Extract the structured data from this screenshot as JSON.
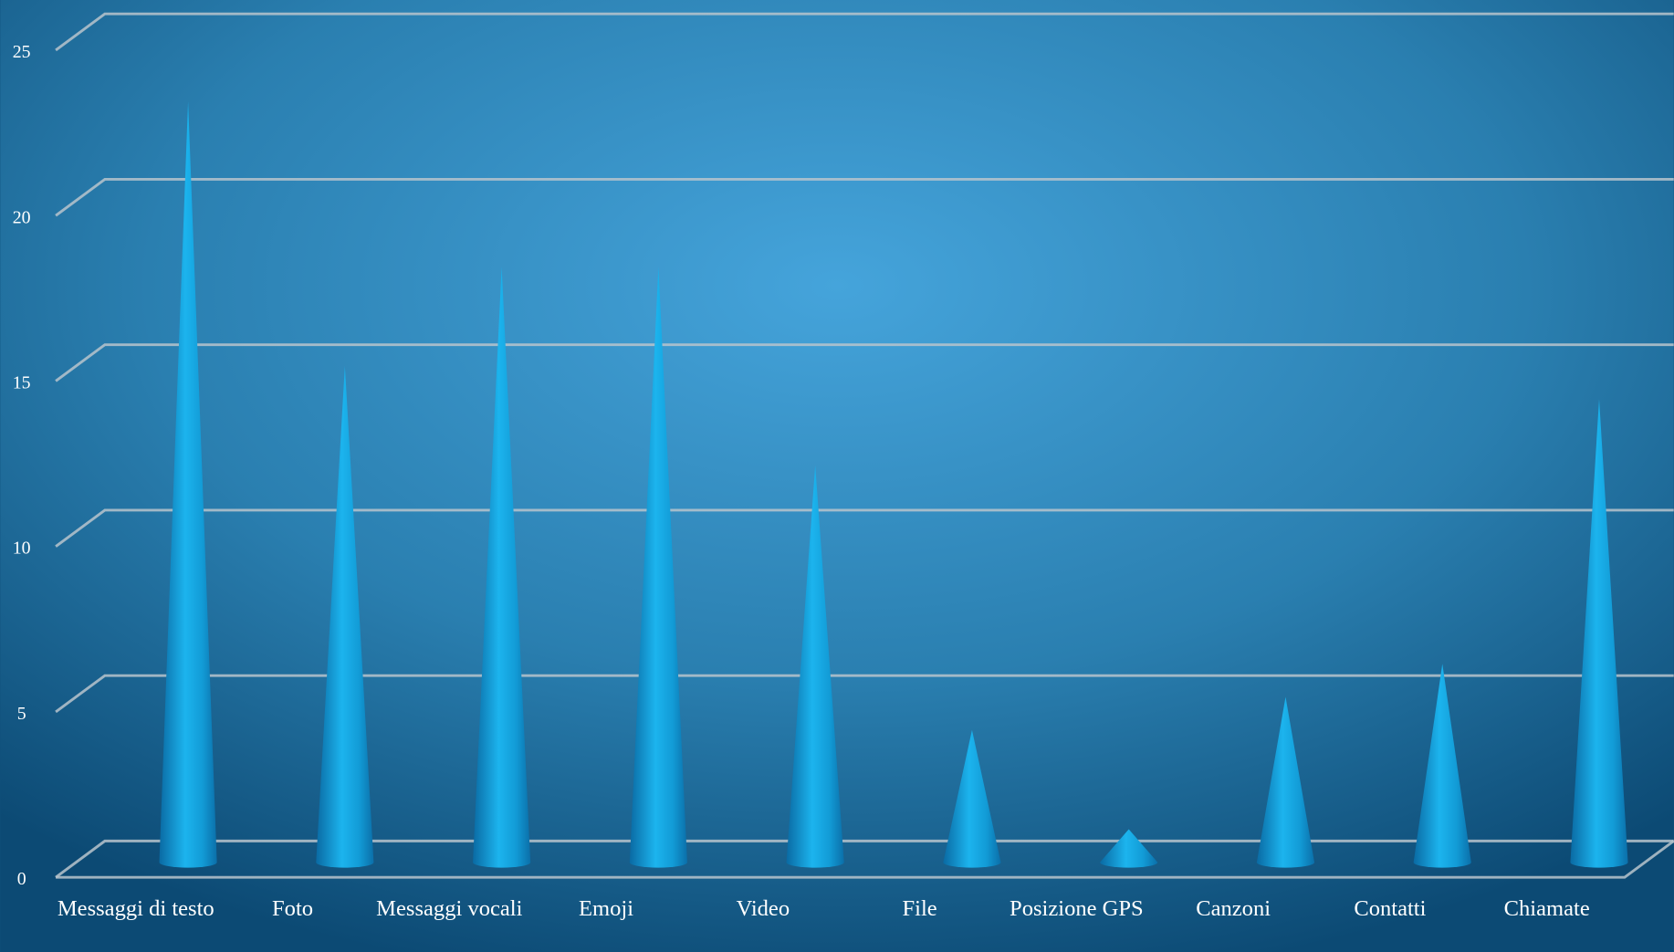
{
  "chart_data": {
    "type": "cone",
    "categories": [
      "Messaggi di testo",
      "Foto",
      "Messaggi vocali",
      "Emoji",
      "Video",
      "File",
      "Posizione GPS",
      "Canzoni",
      "Contatti",
      "Chiamate"
    ],
    "values": [
      23,
      15,
      18,
      18,
      12,
      4,
      1,
      5,
      6,
      14
    ],
    "color": "#1ab0ea",
    "ylim": [
      0,
      25
    ],
    "yticks": [
      0,
      5,
      10,
      15,
      20,
      25
    ],
    "grid": true
  }
}
